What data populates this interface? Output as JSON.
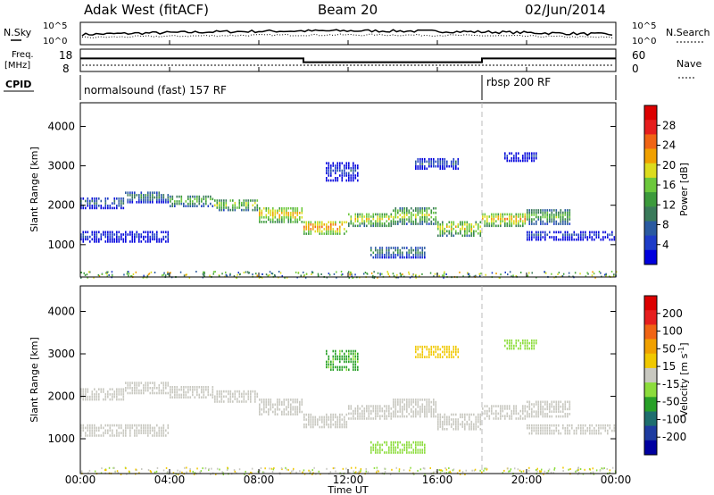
{
  "header": {
    "station": "Adak West (fitACF)",
    "beam": "Beam 20",
    "date": "02/Jun/2014"
  },
  "aux": {
    "nsky_label": "N.Sky",
    "nsearch_label": "N.Search",
    "exp_ticks_left": [
      "10^5",
      "10^0"
    ],
    "exp_ticks_right": [
      "10^5",
      "10^0"
    ],
    "freq_label_1": "Freq.",
    "freq_label_2": "[MHz]",
    "freq_ticks": [
      "18",
      "8"
    ],
    "nave_label": "Nave",
    "nave_ticks": [
      "60",
      "0"
    ],
    "cpid_label": "CPID",
    "cpid_segments": [
      {
        "label": "normalsound (fast) 157 RF",
        "start": 0,
        "end": 18
      },
      {
        "label": "rbsp 200 RF",
        "start": 18,
        "end": 24
      }
    ],
    "freq_steps": [
      {
        "start": 0,
        "end": 10,
        "value": 13
      },
      {
        "start": 10,
        "end": 18,
        "value": 11
      },
      {
        "start": 18,
        "end": 24,
        "value": 13
      }
    ]
  },
  "xaxis": {
    "label": "Time UT",
    "ticks": [
      "00:00",
      "04:00",
      "08:00",
      "12:00",
      "16:00",
      "20:00",
      "00:00"
    ],
    "range_hours": [
      0,
      24
    ]
  },
  "colorbars": {
    "power": {
      "label": "Power [dB]",
      "ticks": [
        "28",
        "24",
        "20",
        "16",
        "12",
        "8",
        "4"
      ],
      "colors": [
        "#0000dd",
        "#1e3cc8",
        "#2a5aa0",
        "#3a7a5a",
        "#3c9a3c",
        "#6cc83c",
        "#dcdc1e",
        "#f0a000",
        "#f06414",
        "#e61e1e",
        "#dc0000"
      ]
    },
    "velocity": {
      "label_main": "Velocity [m s",
      "label_sup": "-1",
      "label_end": "]",
      "ticks": [
        "200",
        "100",
        "50",
        "15",
        "-15",
        "-50",
        "-100",
        "-200"
      ],
      "colors": [
        "#0000a0",
        "#1e3ca0",
        "#1e6e6e",
        "#28a028",
        "#8cdc3c",
        "#c8c8c0",
        "#f0c800",
        "#f0a000",
        "#f06414",
        "#e61e1e",
        "#dc0000"
      ]
    }
  },
  "chart_data": [
    {
      "type": "heatmap",
      "panel": "power",
      "title": "Adak West (fitACF) Beam 20 02/Jun/2014",
      "xlabel": "Time UT",
      "ylabel": "Slant Range [km]",
      "yticks": [
        1000,
        2000,
        3000,
        4000
      ],
      "ylim": [
        180,
        4600
      ],
      "xlim": [
        0,
        24
      ],
      "zlabel": "Power [dB]",
      "zlim": [
        0,
        32
      ],
      "bands": [
        {
          "t0": 0.0,
          "t1": 2.0,
          "r0": 1900,
          "r1": 2200,
          "z": 10
        },
        {
          "t0": 2.0,
          "t1": 4.0,
          "r0": 2050,
          "r1": 2350,
          "z": 12
        },
        {
          "t0": 4.0,
          "t1": 6.0,
          "r0": 1950,
          "r1": 2250,
          "z": 16
        },
        {
          "t0": 6.0,
          "t1": 8.0,
          "r0": 1850,
          "r1": 2150,
          "z": 18
        },
        {
          "t0": 8.0,
          "t1": 10.0,
          "r0": 1550,
          "r1": 1950,
          "z": 22
        },
        {
          "t0": 10.0,
          "t1": 12.0,
          "r0": 1250,
          "r1": 1600,
          "z": 24
        },
        {
          "t0": 12.0,
          "t1": 14.0,
          "r0": 1450,
          "r1": 1800,
          "z": 20
        },
        {
          "t0": 14.0,
          "t1": 16.0,
          "r0": 1500,
          "r1": 1950,
          "z": 18
        },
        {
          "t0": 16.0,
          "t1": 18.0,
          "r0": 1200,
          "r1": 1600,
          "z": 20
        },
        {
          "t0": 18.0,
          "t1": 20.0,
          "r0": 1450,
          "r1": 1800,
          "z": 22
        },
        {
          "t0": 20.0,
          "t1": 22.0,
          "r0": 1500,
          "r1": 1900,
          "z": 16
        },
        {
          "t0": 0.0,
          "t1": 4.0,
          "r0": 1050,
          "r1": 1350,
          "z": 6
        },
        {
          "t0": 20.0,
          "t1": 24.0,
          "r0": 1100,
          "r1": 1350,
          "z": 6
        },
        {
          "t0": 13.0,
          "t1": 15.5,
          "r0": 650,
          "r1": 950,
          "z": 12
        },
        {
          "t0": 15.0,
          "t1": 17.0,
          "r0": 2900,
          "r1": 3200,
          "z": 8
        },
        {
          "t0": 11.0,
          "t1": 12.5,
          "r0": 2600,
          "r1": 3100,
          "z": 6
        },
        {
          "t0": 19.0,
          "t1": 20.5,
          "r0": 3100,
          "r1": 3350,
          "z": 4
        }
      ]
    },
    {
      "type": "heatmap",
      "panel": "velocity",
      "xlabel": "Time UT",
      "ylabel": "Slant Range [km]",
      "yticks": [
        1000,
        2000,
        3000,
        4000
      ],
      "ylim": [
        180,
        4600
      ],
      "xlim": [
        0,
        24
      ],
      "zlabel": "Velocity [m s-1]",
      "zlim": [
        -200,
        200
      ],
      "bands": [
        {
          "t0": 0.0,
          "t1": 2.0,
          "r0": 1900,
          "r1": 2200,
          "z": 0
        },
        {
          "t0": 2.0,
          "t1": 4.0,
          "r0": 2050,
          "r1": 2350,
          "z": 0
        },
        {
          "t0": 4.0,
          "t1": 6.0,
          "r0": 1950,
          "r1": 2250,
          "z": 0
        },
        {
          "t0": 6.0,
          "t1": 8.0,
          "r0": 1850,
          "r1": 2150,
          "z": 0
        },
        {
          "t0": 8.0,
          "t1": 10.0,
          "r0": 1550,
          "r1": 1950,
          "z": 0
        },
        {
          "t0": 10.0,
          "t1": 12.0,
          "r0": 1250,
          "r1": 1600,
          "z": 0
        },
        {
          "t0": 12.0,
          "t1": 14.0,
          "r0": 1450,
          "r1": 1800,
          "z": 0
        },
        {
          "t0": 14.0,
          "t1": 16.0,
          "r0": 1500,
          "r1": 1950,
          "z": 0
        },
        {
          "t0": 16.0,
          "t1": 18.0,
          "r0": 1200,
          "r1": 1600,
          "z": 0
        },
        {
          "t0": 18.0,
          "t1": 20.0,
          "r0": 1450,
          "r1": 1800,
          "z": 0
        },
        {
          "t0": 20.0,
          "t1": 22.0,
          "r0": 1500,
          "r1": 1900,
          "z": 0
        },
        {
          "t0": 0.0,
          "t1": 4.0,
          "r0": 1050,
          "r1": 1350,
          "z": 0
        },
        {
          "t0": 20.0,
          "t1": 24.0,
          "r0": 1100,
          "r1": 1350,
          "z": 0
        },
        {
          "t0": 13.0,
          "t1": 15.5,
          "r0": 650,
          "r1": 950,
          "z": -40
        },
        {
          "t0": 15.0,
          "t1": 17.0,
          "r0": 2900,
          "r1": 3200,
          "z": 30
        },
        {
          "t0": 11.0,
          "t1": 12.5,
          "r0": 2600,
          "r1": 3100,
          "z": -60
        },
        {
          "t0": 19.0,
          "t1": 20.5,
          "r0": 3100,
          "r1": 3350,
          "z": -30
        }
      ]
    }
  ]
}
